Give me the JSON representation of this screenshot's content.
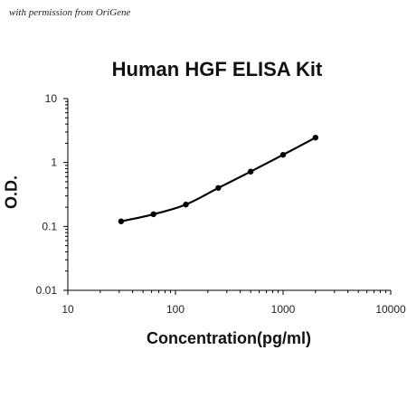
{
  "permission_note": "with permission from OriGene",
  "chart_data": {
    "type": "scatter",
    "title": "Human HGF ELISA Kit",
    "xlabel": "Concentration(pg/ml)",
    "ylabel": "O.D.",
    "x_scale": "log",
    "y_scale": "log",
    "xlim": [
      10,
      10000
    ],
    "ylim": [
      0.01,
      10
    ],
    "x_ticks": [
      10,
      100,
      1000,
      10000
    ],
    "x_tick_labels": [
      "10",
      "100",
      "1000",
      "10000"
    ],
    "y_ticks": [
      0.01,
      0.1,
      1,
      10
    ],
    "y_tick_labels": [
      "0.01",
      "0.1",
      "1",
      "10"
    ],
    "grid": false,
    "legend": "none",
    "series": [
      {
        "x": [
          31.25,
          62.5,
          125,
          250,
          500,
          1000,
          2000
        ],
        "y": [
          0.12,
          0.155,
          0.22,
          0.4,
          0.72,
          1.32,
          2.45
        ],
        "color": "#000000",
        "marker": "circle",
        "fit_line": true
      }
    ]
  }
}
